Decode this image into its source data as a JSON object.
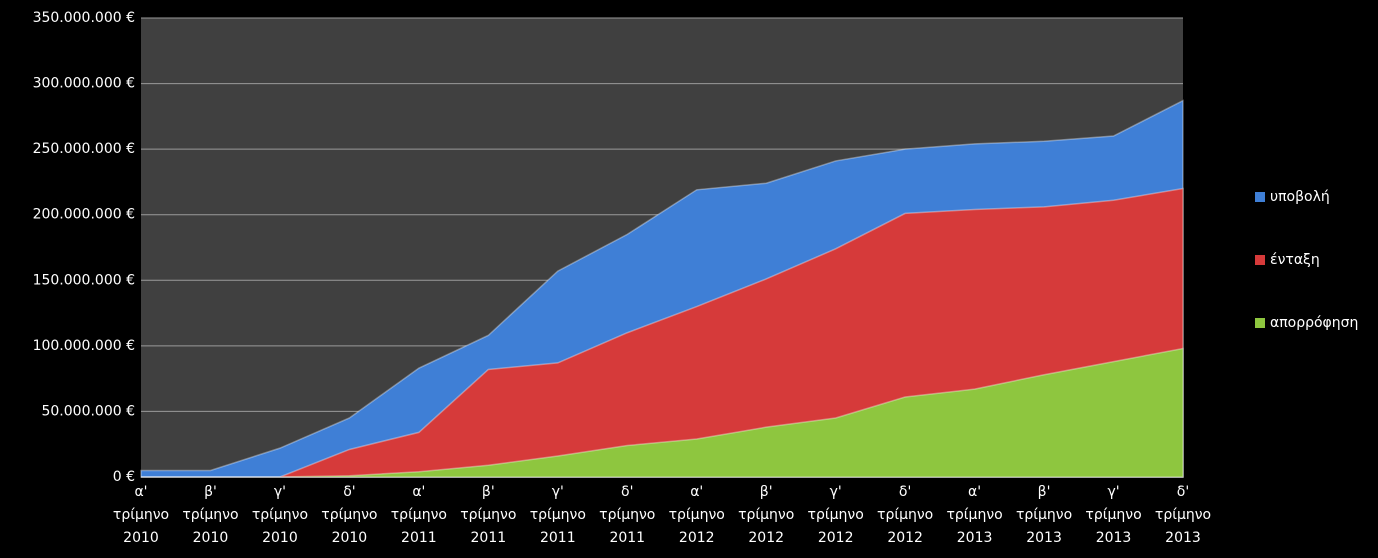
{
  "chart_data": {
    "type": "area",
    "categories": [
      [
        "α'",
        "τρίμηνο",
        "2010"
      ],
      [
        "β'",
        "τρίμηνο",
        "2010"
      ],
      [
        "γ'",
        "τρίμηνο",
        "2010"
      ],
      [
        "δ'",
        "τρίμηνο",
        "2010"
      ],
      [
        "α'",
        "τρίμηνο",
        "2011"
      ],
      [
        "β'",
        "τρίμηνο",
        "2011"
      ],
      [
        "γ'",
        "τρίμηνο",
        "2011"
      ],
      [
        "δ'",
        "τρίμηνο",
        "2011"
      ],
      [
        "α'",
        "τρίμηνο",
        "2012"
      ],
      [
        "β'",
        "τρίμηνο",
        "2012"
      ],
      [
        "γ'",
        "τρίμηνο",
        "2012"
      ],
      [
        "δ'",
        "τρίμηνο",
        "2012"
      ],
      [
        "α'",
        "τρίμηνο",
        "2013"
      ],
      [
        "β'",
        "τρίμηνο",
        "2013"
      ],
      [
        "γ'",
        "τρίμηνο",
        "2013"
      ],
      [
        "δ'",
        "τρίμηνο",
        "2013"
      ]
    ],
    "series": [
      {
        "name": "υποβολή",
        "color": "#3f7fd6",
        "values": [
          5000000,
          5000000,
          22000000,
          45000000,
          83000000,
          108000000,
          157000000,
          185000000,
          219000000,
          224000000,
          241000000,
          250000000,
          254000000,
          256000000,
          260000000,
          287000000
        ]
      },
      {
        "name": "ένταξη",
        "color": "#d63a3a",
        "values": [
          0,
          0,
          0,
          21000000,
          34000000,
          82000000,
          87000000,
          110000000,
          130000000,
          151000000,
          174000000,
          201000000,
          204000000,
          206000000,
          211000000,
          220000000
        ]
      },
      {
        "name": "απορρόφηση",
        "color": "#8ec63f",
        "values": [
          0,
          0,
          0,
          1000000,
          4000000,
          9000000,
          16000000,
          24000000,
          29000000,
          38000000,
          45000000,
          61000000,
          67000000,
          78000000,
          88000000,
          98000000
        ]
      }
    ],
    "ylim": [
      0,
      350000000
    ],
    "yticks": [
      {
        "value": 0,
        "label": "0 €"
      },
      {
        "value": 50000000,
        "label": "50.000.000 €"
      },
      {
        "value": 100000000,
        "label": "100.000.000 €"
      },
      {
        "value": 150000000,
        "label": "150.000.000 €"
      },
      {
        "value": 200000000,
        "label": "200.000.000 €"
      },
      {
        "value": 250000000,
        "label": "250.000.000 €"
      },
      {
        "value": 300000000,
        "label": "300.000.000 €"
      },
      {
        "value": 350000000,
        "label": "350.000.000 €"
      }
    ],
    "grid": true
  }
}
